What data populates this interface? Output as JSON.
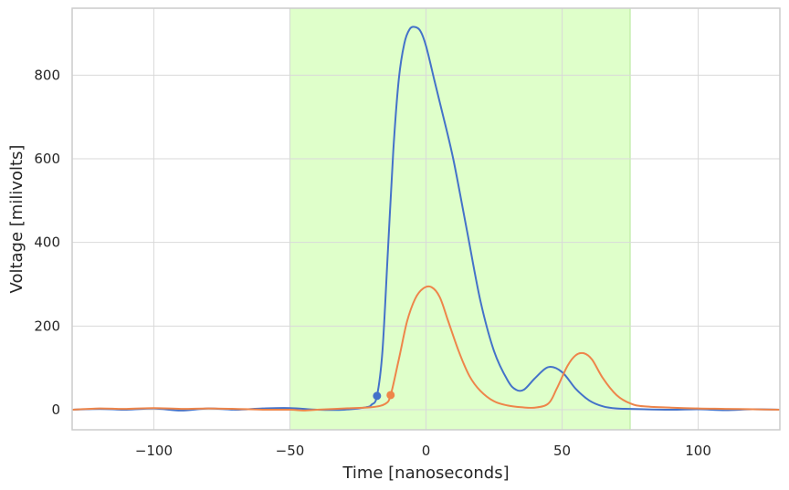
{
  "chart_data": {
    "type": "line",
    "title": "",
    "xlabel": "Time [nanoseconds]",
    "ylabel": "Voltage [milivolts]",
    "xlim": [
      -130,
      130
    ],
    "ylim": [
      -48,
      960
    ],
    "xticks": [
      -100,
      -50,
      0,
      50,
      100
    ],
    "xtick_labels": [
      "−100",
      "−50",
      "0",
      "50",
      "100"
    ],
    "yticks": [
      0,
      200,
      400,
      600,
      800
    ],
    "ytick_labels": [
      "0",
      "200",
      "400",
      "600",
      "800"
    ],
    "grid": true,
    "shaded_region": {
      "x_start": -50,
      "x_end": 75,
      "color": "#dfffca"
    },
    "series": [
      {
        "color": "#4472c9",
        "marker": {
          "x": -18,
          "y": 33
        },
        "x": [
          -130,
          -120,
          -110,
          -100,
          -90,
          -80,
          -70,
          -60,
          -50,
          -40,
          -30,
          -22,
          -20,
          -18,
          -16,
          -14,
          -12,
          -10,
          -8,
          -6,
          -4,
          -2,
          0,
          3,
          6,
          10,
          15,
          20,
          25,
          30,
          33,
          36,
          40,
          45,
          50,
          55,
          60,
          65,
          70,
          75,
          80,
          90,
          100,
          110,
          120,
          130
        ],
        "y": [
          0,
          2,
          0,
          3,
          -2,
          3,
          0,
          3,
          4,
          0,
          0,
          6,
          12,
          33,
          140,
          380,
          620,
          790,
          875,
          910,
          915,
          905,
          870,
          790,
          710,
          600,
          430,
          260,
          140,
          70,
          48,
          48,
          75,
          102,
          90,
          50,
          22,
          8,
          3,
          2,
          1,
          0,
          1,
          -1,
          1,
          0
        ]
      },
      {
        "color": "#ee854a",
        "marker": {
          "x": -13,
          "y": 35
        },
        "x": [
          -130,
          -120,
          -110,
          -100,
          -90,
          -80,
          -70,
          -60,
          -50,
          -45,
          -40,
          -30,
          -20,
          -15,
          -13,
          -10,
          -7,
          -4,
          -1,
          2,
          5,
          8,
          12,
          16,
          20,
          25,
          30,
          35,
          40,
          45,
          48,
          52,
          55,
          58,
          61,
          65,
          70,
          75,
          80,
          90,
          100,
          110,
          120,
          130
        ],
        "y": [
          0,
          3,
          2,
          4,
          2,
          3,
          2,
          0,
          0,
          -2,
          0,
          3,
          6,
          14,
          35,
          120,
          210,
          265,
          290,
          293,
          270,
          215,
          140,
          80,
          45,
          20,
          10,
          6,
          5,
          15,
          50,
          105,
          130,
          135,
          120,
          75,
          35,
          15,
          8,
          5,
          3,
          2,
          1,
          0
        ]
      }
    ]
  }
}
